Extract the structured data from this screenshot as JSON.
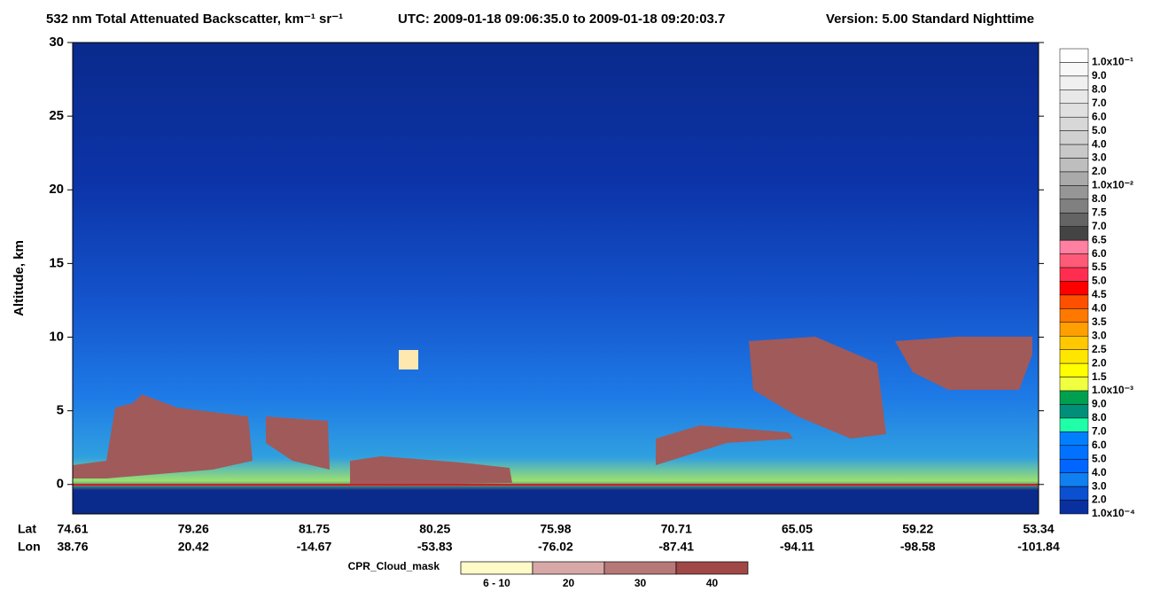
{
  "chart_data": {
    "type": "heatmap",
    "title": "532 nm Total Attenuated Backscatter, km⁻¹ sr⁻¹",
    "utc": "UTC:  2009-01-18 09:06:35.0  to  2009-01-18 09:20:03.7",
    "version": "Version: 5.00  Standard  Nighttime",
    "y_label": "Altitude, km",
    "ylim": [
      -2,
      30
    ],
    "yticks": [
      0,
      5,
      10,
      15,
      20,
      25,
      30
    ],
    "x_rows": [
      {
        "name": "Lat",
        "labels": [
          "74.61",
          "79.26",
          "81.75",
          "80.25",
          "75.98",
          "70.71",
          "65.05",
          "59.22",
          "53.34"
        ]
      },
      {
        "name": "Lon",
        "labels": [
          "38.76",
          "20.42",
          "-14.67",
          "-53.83",
          "-76.02",
          "-87.41",
          "-94.11",
          "-98.58",
          "-101.84"
        ]
      }
    ],
    "colorbar": {
      "labels": [
        "1.0x10⁻¹",
        "9.0",
        "8.0",
        "7.0",
        "6.0",
        "5.0",
        "4.0",
        "3.0",
        "2.0",
        "1.0x10⁻²",
        "8.0",
        "7.5",
        "7.0",
        "6.5",
        "6.0",
        "5.5",
        "5.0",
        "4.5",
        "4.0",
        "3.5",
        "3.0",
        "2.5",
        "2.0",
        "1.5",
        "1.0x10⁻³",
        "9.0",
        "8.0",
        "7.0",
        "6.0",
        "5.0",
        "4.0",
        "3.0",
        "2.0",
        "1.0x10⁻⁴"
      ],
      "colors": [
        "#ffffff",
        "#f8f8f8",
        "#f0f0f0",
        "#e8e8e8",
        "#e0e0e0",
        "#d8d8d8",
        "#d0d0d0",
        "#c8c8c8",
        "#bebebe",
        "#aaaaaa",
        "#969696",
        "#808080",
        "#646464",
        "#444444",
        "#ff80a0",
        "#ff5a78",
        "#ff2d50",
        "#ff0000",
        "#ff5000",
        "#ff7800",
        "#ffa000",
        "#ffc800",
        "#ffe600",
        "#ffff00",
        "#f0ff40",
        "#00a050",
        "#00907a",
        "#20ffa8",
        "#0080ff",
        "#0072ff",
        "#0066ff",
        "#1080f0",
        "#0a50d0",
        "#0a30a0"
      ]
    },
    "cloud_mask": {
      "title": "CPR_Cloud_mask",
      "labels": [
        "6 - 10",
        "20",
        "30",
        "40"
      ],
      "colors": [
        "#fffbc8",
        "#d8a8a8",
        "#b87878",
        "#a04848"
      ]
    }
  }
}
